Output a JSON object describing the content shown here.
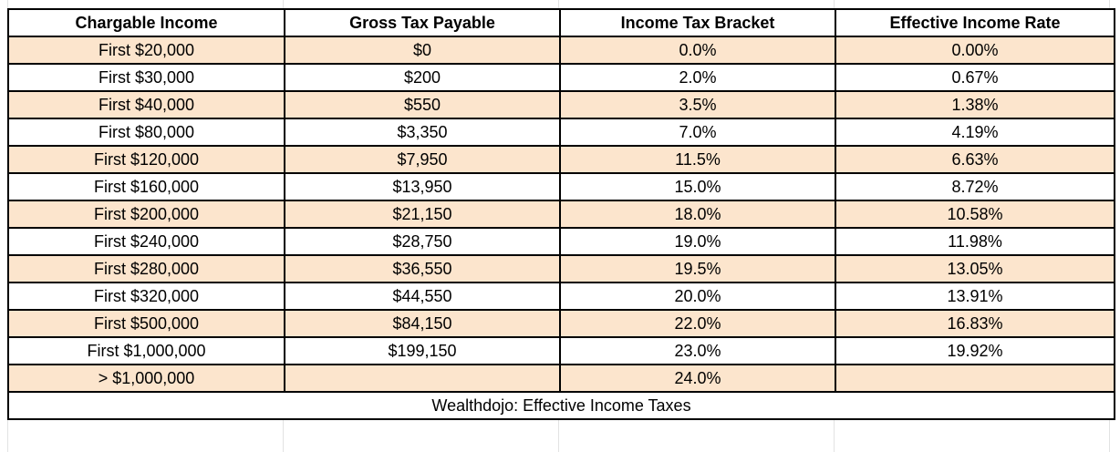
{
  "table": {
    "headers": [
      "Chargable Income",
      "Gross Tax Payable",
      "Income Tax Bracket",
      "Effective Income Rate"
    ],
    "rows": [
      [
        "First $20,000",
        "$0",
        "0.0%",
        "0.00%"
      ],
      [
        "First $30,000",
        "$200",
        "2.0%",
        "0.67%"
      ],
      [
        "First $40,000",
        "$550",
        "3.5%",
        "1.38%"
      ],
      [
        "First $80,000",
        "$3,350",
        "7.0%",
        "4.19%"
      ],
      [
        "First $120,000",
        "$7,950",
        "11.5%",
        "6.63%"
      ],
      [
        "First $160,000",
        "$13,950",
        "15.0%",
        "8.72%"
      ],
      [
        "First $200,000",
        "$21,150",
        "18.0%",
        "10.58%"
      ],
      [
        "First $240,000",
        "$28,750",
        "19.0%",
        "11.98%"
      ],
      [
        "First $280,000",
        "$36,550",
        "19.5%",
        "13.05%"
      ],
      [
        "First $320,000",
        "$44,550",
        "20.0%",
        "13.91%"
      ],
      [
        "First $500,000",
        "$84,150",
        "22.0%",
        "16.83%"
      ],
      [
        "First $1,000,000",
        "$199,150",
        "23.0%",
        "19.92%"
      ],
      [
        "> $1,000,000",
        "",
        "24.0%",
        ""
      ]
    ],
    "caption": "Wealthdojo: Effective Income Taxes"
  },
  "colors": {
    "shaded_row": "#fce5cd",
    "plain_row": "#ffffff",
    "border": "#000000"
  }
}
